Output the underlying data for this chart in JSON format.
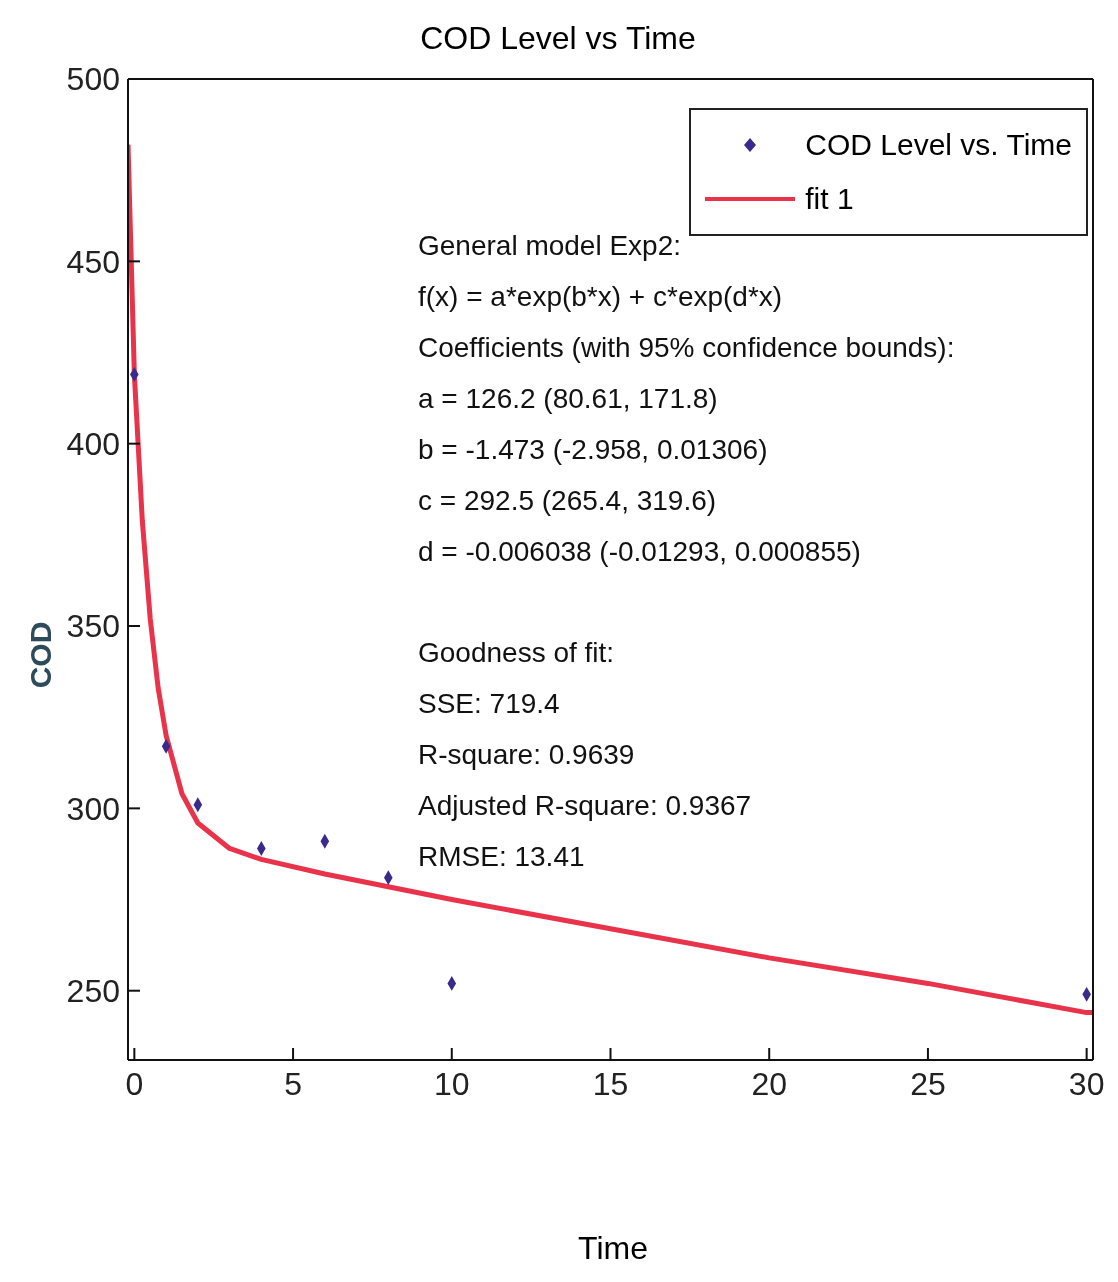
{
  "chart_data": {
    "type": "scatter",
    "title": "COD Level vs Time",
    "xlabel": "Time",
    "ylabel": "COD",
    "xlim": [
      -0.2,
      30.2
    ],
    "xticks": [
      0,
      5,
      10,
      15,
      20,
      25,
      30
    ],
    "ylim": [
      231,
      500
    ],
    "yticks": [
      250,
      300,
      350,
      400,
      450,
      500
    ],
    "legend": "top right",
    "grid": false,
    "series": [
      {
        "name": "COD Level vs. Time",
        "marker": "diamond",
        "color": "#3a2a8c",
        "x": [
          0,
          1,
          2,
          4,
          6,
          8,
          10,
          30
        ],
        "values": [
          419,
          317,
          301,
          289,
          291,
          281,
          252,
          249
        ]
      },
      {
        "name": "fit 1",
        "type": "line",
        "marker": "none",
        "color": "#e8334a",
        "line_style": "solid",
        "x": [
          -0.2,
          0,
          0.25,
          0.5,
          0.75,
          1,
          1.5,
          2,
          3,
          4,
          6,
          10,
          15,
          20,
          25,
          30,
          30.2
        ],
        "values": [
          482,
          419,
          379,
          352,
          333,
          320,
          304,
          296,
          289,
          286,
          282,
          275,
          267,
          259,
          252,
          244,
          244
        ]
      }
    ],
    "annotations": [
      "General model Exp2:",
      "f(x) = a*exp(b*x) + c*exp(d*x)",
      "Coefficients (with 95% confidence bounds):",
      "a = 126.2 (80.61, 171.8)",
      "b = -1.473 (-2.958, 0.01306)",
      "c = 292.5 (265.4, 319.6)",
      "d = -0.006038 (-0.01293, 0.000855)",
      "Goodness of fit:",
      "SSE: 719.4",
      "R-square: 0.9639",
      "Adjusted R-square: 0.9367",
      "RMSE: 13.41"
    ]
  }
}
